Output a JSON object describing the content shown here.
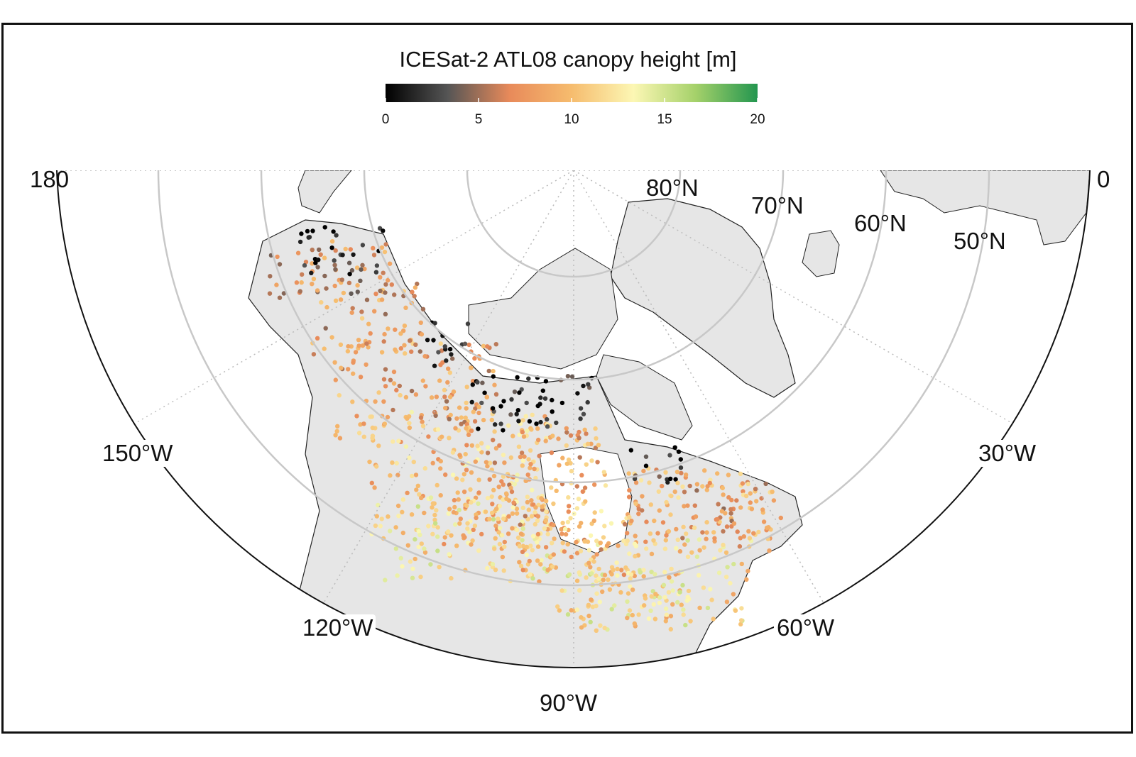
{
  "legend": {
    "title": "ICESat-2 ATL08 canopy height [m]",
    "colormap": [
      "#000000",
      "#555555",
      "#e88a5a",
      "#f6bc6e",
      "#fcf7b4",
      "#a5d16a",
      "#23964f"
    ],
    "ticks": [
      "0",
      "5",
      "10",
      "15",
      "20"
    ],
    "range": [
      0,
      20
    ]
  },
  "map": {
    "projection": "north polar stereographic",
    "land_color": "#e6e6e6",
    "graticule_color": "#c8c8c8",
    "latitude_labels": [
      "80°N",
      "70°N",
      "60°N",
      "50°N"
    ],
    "longitude_labels": {
      "lon_180": "180",
      "lon_0": "0",
      "lon_150w": "150°W",
      "lon_30w": "30°W",
      "lon_120w": "120°W",
      "lon_60w": "60°W",
      "lon_90w": "90°W"
    }
  }
}
